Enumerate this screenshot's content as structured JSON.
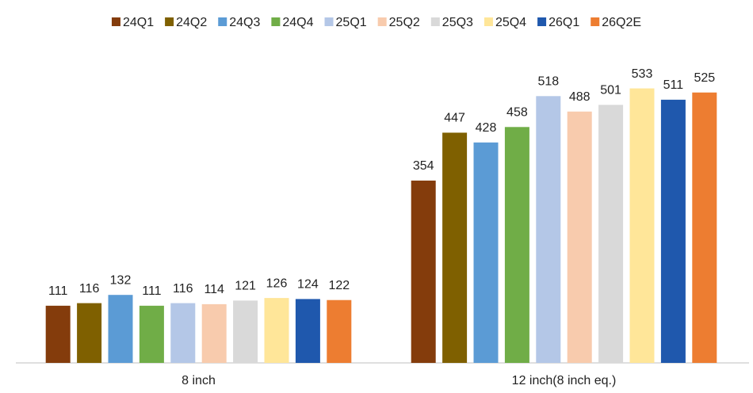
{
  "chart_data": {
    "type": "bar",
    "categories": [
      "8 inch",
      "12 inch(8 inch eq.)"
    ],
    "series": [
      {
        "name": "24Q1",
        "color": "#843c0c",
        "values": [
          111,
          354
        ]
      },
      {
        "name": "24Q2",
        "color": "#7f6000",
        "values": [
          116,
          447
        ]
      },
      {
        "name": "24Q3",
        "color": "#5b9bd5",
        "values": [
          132,
          428
        ]
      },
      {
        "name": "24Q4",
        "color": "#70ad47",
        "values": [
          111,
          458
        ]
      },
      {
        "name": "25Q1",
        "color": "#b4c7e7",
        "values": [
          116,
          518
        ]
      },
      {
        "name": "25Q2",
        "color": "#f8cbad",
        "values": [
          114,
          488
        ]
      },
      {
        "name": "25Q3",
        "color": "#d9d9d9",
        "values": [
          121,
          501
        ]
      },
      {
        "name": "25Q4",
        "color": "#ffe699",
        "values": [
          126,
          533
        ]
      },
      {
        "name": "26Q1",
        "color": "#1f58ad",
        "values": [
          124,
          511
        ]
      },
      {
        "name": "26Q2E",
        "color": "#ed7d31",
        "values": [
          122,
          525
        ]
      }
    ],
    "ylim": [
      0,
      600
    ],
    "legend": "top"
  }
}
